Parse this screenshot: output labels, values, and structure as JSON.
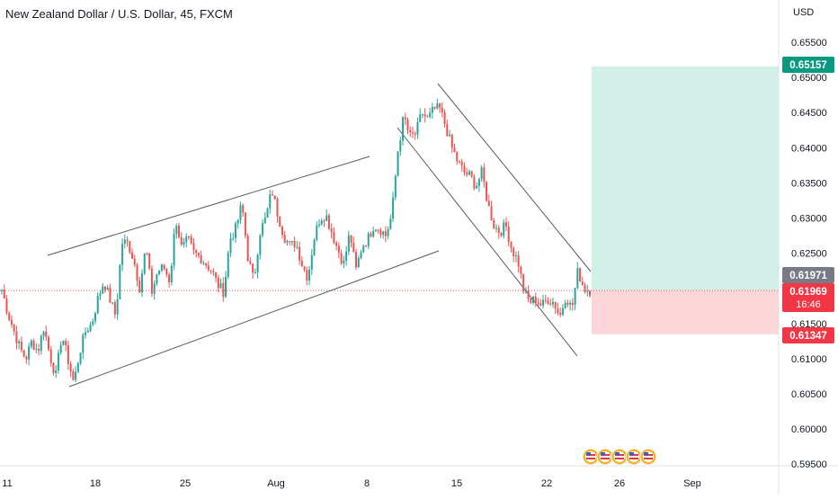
{
  "chart_data": {
    "type": "candlestick",
    "title": "New Zealand Dollar / U.S. Dollar, 45, FXCM",
    "currency": "USD",
    "y_axis": {
      "ticks": [
        "0.65500",
        "0.65000",
        "0.64500",
        "0.64000",
        "0.63500",
        "0.63000",
        "0.62500",
        "0.61500",
        "0.61000",
        "0.60500",
        "0.60000",
        "0.59500"
      ],
      "range": [
        0.5945,
        0.6572
      ]
    },
    "x_axis": {
      "ticks": [
        "11",
        "18",
        "25",
        "Aug",
        "8",
        "15",
        "22",
        "26",
        "Sep"
      ]
    },
    "price_labels": {
      "target": {
        "value": "0.65157",
        "color": "#089981"
      },
      "last": {
        "value": "0.61971",
        "color": "#787b86"
      },
      "current": {
        "value": "0.61969",
        "countdown": "16:46",
        "color": "#f23645"
      },
      "stop": {
        "value": "0.61347",
        "color": "#f23645"
      }
    },
    "colors": {
      "up": "#26a69a",
      "down": "#ef5350",
      "trendline": "#555a64",
      "profit_zone": "#d2efe8",
      "loss_zone": "#fbd5d7",
      "background": "#ffffff"
    },
    "price_path": [
      [
        0.6198,
        0.6165,
        0.614,
        0.6115,
        0.61,
        0.6125,
        0.611,
        0.6145,
        0.6105,
        0.6075,
        0.6135,
        0.61,
        0.6065,
        0.611,
        0.614,
        0.615,
        0.6185,
        0.621,
        0.6185,
        0.616,
        0.6265,
        0.6265,
        0.624,
        0.62,
        0.626,
        0.6195,
        0.6225,
        0.623,
        0.621,
        0.63,
        0.6255,
        0.627,
        0.625,
        0.6245,
        0.6235,
        0.6225,
        0.6205,
        0.6195,
        0.627,
        0.6285,
        0.632,
        0.6245,
        0.621,
        0.628,
        0.63,
        0.634,
        0.6305,
        0.6275,
        0.626,
        0.6265,
        0.6235,
        0.6215,
        0.627,
        0.63,
        0.6305,
        0.628,
        0.6255,
        0.6235,
        0.628,
        0.6225,
        0.626,
        0.627,
        0.629,
        0.6285,
        0.6275,
        0.6305,
        0.6395,
        0.6445,
        0.6415,
        0.642,
        0.645,
        0.644,
        0.6455,
        0.6455,
        0.643,
        0.64,
        0.638,
        0.6365,
        0.636,
        0.6345,
        0.6365,
        0.632,
        0.629,
        0.628,
        0.629,
        0.6255,
        0.624,
        0.6195,
        0.618,
        0.6185,
        0.6175,
        0.6185,
        0.618,
        0.616,
        0.619,
        0.617,
        0.6225,
        0.62,
        0.6197
      ]
    ],
    "trend_channels": [
      "ascending channel",
      "descending channel"
    ],
    "event_icons": [
      "us-flag-icon",
      "us-flag-icon",
      "us-flag-icon",
      "us-flag-icon",
      "us-flag-icon"
    ],
    "grid": false
  }
}
